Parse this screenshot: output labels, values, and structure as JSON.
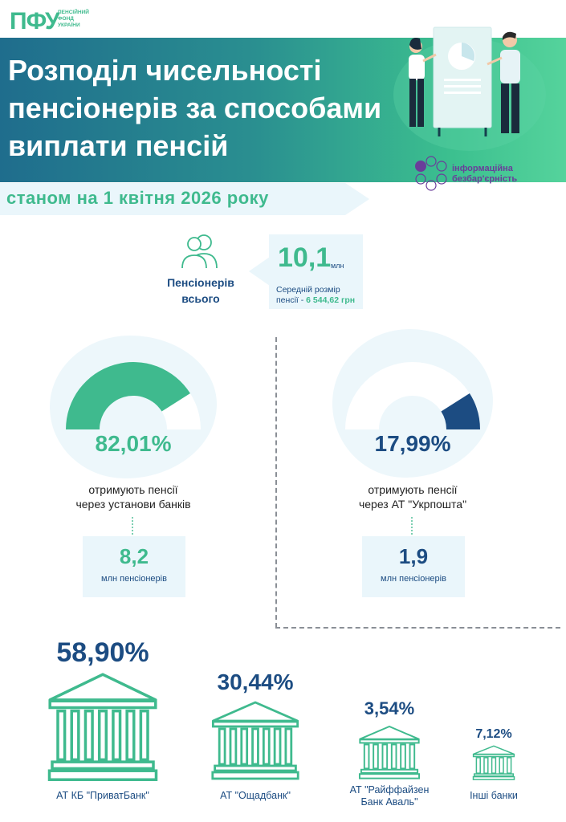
{
  "header": {
    "logo": "ПФУ",
    "org_line1": "ПЕНСІЙНИЙ",
    "org_line2": "ФОНД",
    "org_line3": "УКРАЇНИ",
    "title_line1": "Розподіл чисельності",
    "title_line2": "пенсіонерів за способами",
    "title_line3": "виплати пенсій",
    "date": "станом на 1 квітня 2026 року",
    "info_line1": "інформаційна",
    "info_line2": "безбар'єрність"
  },
  "totals": {
    "label_line1": "Пенсіонерів",
    "label_line2": "всього",
    "count": "10,1",
    "count_unit": "млн",
    "avg_label": "Середній розмір",
    "avg_prefix": "пенсії - ",
    "avg_value": "6 544,62 грн"
  },
  "banks_gauge": {
    "percent_text": "82,01%",
    "percent": 82.01,
    "desc_line1": "отримують пенсії",
    "desc_line2": "через установи банків",
    "count": "8,2",
    "count_unit": "млн пенсіонерів",
    "color": "#3fba8e"
  },
  "post_gauge": {
    "percent_text": "17,99%",
    "percent": 17.99,
    "desc_line1": "отримують пенсії",
    "desc_line2": "через АТ \"Укрпошта\"",
    "count": "1,9",
    "count_unit": "млн пенсіонерів",
    "color": "#1c4c82"
  },
  "banks": [
    {
      "percent": "58,90%",
      "name_line1": "АТ КБ \"ПриватБанк\"",
      "name_line2": ""
    },
    {
      "percent": "30,44%",
      "name_line1": "АТ \"Ощадбанк\"",
      "name_line2": ""
    },
    {
      "percent": "3,54%",
      "name_line1": "АТ \"Райффайзен",
      "name_line2": "Банк Аваль\""
    },
    {
      "percent": "7,12%",
      "name_line1": "Інші банки",
      "name_line2": ""
    }
  ],
  "colors": {
    "green": "#3fba8e",
    "navy": "#1c4c82",
    "light": "#eaf6fb"
  }
}
